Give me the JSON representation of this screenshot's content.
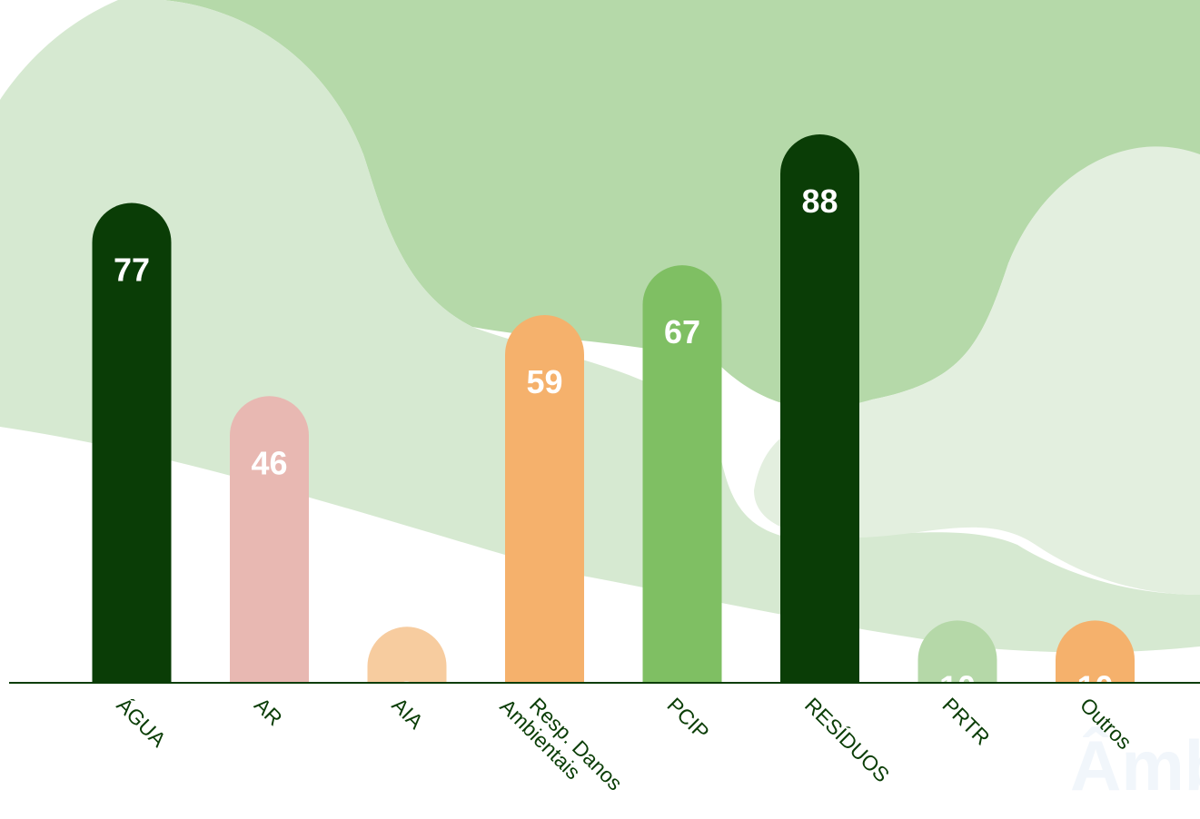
{
  "chart_data": {
    "type": "bar",
    "categories": [
      "ÁGUA",
      "AR",
      "AIA",
      "Resp. Danos Ambientais",
      "PCIP",
      "RESÍDUOS",
      "PRTR",
      "Outros"
    ],
    "category_lines": [
      [
        "ÁGUA"
      ],
      [
        "AR"
      ],
      [
        "AIA"
      ],
      [
        "Resp. Danos",
        "Ambientais"
      ],
      [
        "PCIP"
      ],
      [
        "RESÍDUOS"
      ],
      [
        "PRTR"
      ],
      [
        "Outros"
      ]
    ],
    "values": [
      77,
      46,
      9,
      59,
      67,
      88,
      10,
      10
    ],
    "bar_colors": [
      "#0a3d06",
      "#e8b8b2",
      "#f7cc9f",
      "#f5b16c",
      "#7fbf63",
      "#0a3d06",
      "#b5d8a8",
      "#f5b16c"
    ],
    "title": "",
    "xlabel": "",
    "ylabel": "",
    "ylim": [
      0,
      88
    ],
    "grid": false,
    "legend": "none",
    "data_labels": "inside-top",
    "rounded_tops": true
  },
  "theme": {
    "background": "#ffffff",
    "blob_dark": "#b5d9a9",
    "blob_light": "#d6e9d1",
    "blob_soft": "#e3efdf",
    "axis_color": "#0a3d06",
    "value_label_color": "#ffffff",
    "tick_label_color": "#0a3d06"
  },
  "watermark": "Âmbi"
}
